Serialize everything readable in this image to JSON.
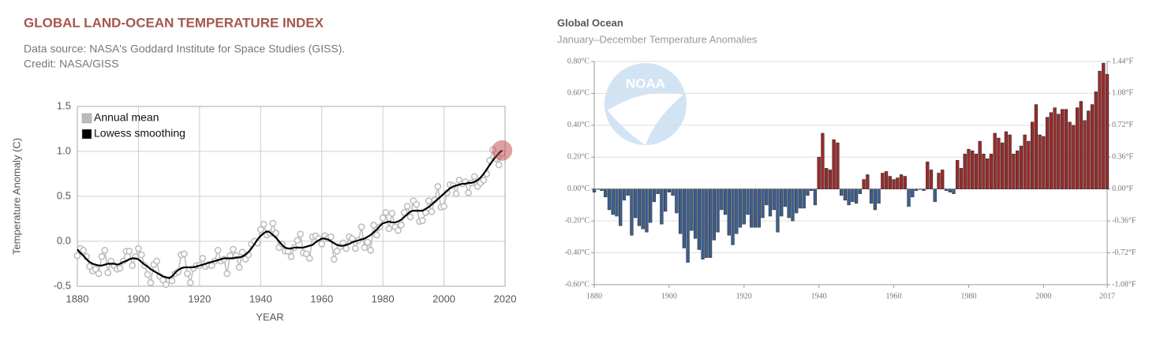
{
  "chart_data": [
    {
      "type": "line",
      "title": "GLOBAL LAND-OCEAN TEMPERATURE INDEX",
      "subtitle": [
        "Data source: NASA's Goddard Institute for Space Studies (GISS).",
        "Credit: NASA/GISS"
      ],
      "x_label": "YEAR",
      "y_label": "Temperature Anomaly (C)",
      "x": [
        1880,
        1881,
        1882,
        1883,
        1884,
        1885,
        1886,
        1887,
        1888,
        1889,
        1890,
        1891,
        1892,
        1893,
        1894,
        1895,
        1896,
        1897,
        1898,
        1899,
        1900,
        1901,
        1902,
        1903,
        1904,
        1905,
        1906,
        1907,
        1908,
        1909,
        1910,
        1911,
        1912,
        1913,
        1914,
        1915,
        1916,
        1917,
        1918,
        1919,
        1920,
        1921,
        1922,
        1923,
        1924,
        1925,
        1926,
        1927,
        1928,
        1929,
        1930,
        1931,
        1932,
        1933,
        1934,
        1935,
        1936,
        1937,
        1938,
        1939,
        1940,
        1941,
        1942,
        1943,
        1944,
        1945,
        1946,
        1947,
        1948,
        1949,
        1950,
        1951,
        1952,
        1953,
        1954,
        1955,
        1956,
        1957,
        1958,
        1959,
        1960,
        1961,
        1962,
        1963,
        1964,
        1965,
        1966,
        1967,
        1968,
        1969,
        1970,
        1971,
        1972,
        1973,
        1974,
        1975,
        1976,
        1977,
        1978,
        1979,
        1980,
        1981,
        1982,
        1983,
        1984,
        1985,
        1986,
        1987,
        1988,
        1989,
        1990,
        1991,
        1992,
        1993,
        1994,
        1995,
        1996,
        1997,
        1998,
        1999,
        2000,
        2001,
        2002,
        2003,
        2004,
        2005,
        2006,
        2007,
        2008,
        2009,
        2010,
        2011,
        2012,
        2013,
        2014,
        2015,
        2016,
        2017,
        2018,
        2019
      ],
      "series": [
        {
          "name": "Annual mean",
          "color": "#bbbbbb",
          "markers": true,
          "values": [
            -0.16,
            -0.08,
            -0.1,
            -0.17,
            -0.28,
            -0.33,
            -0.31,
            -0.36,
            -0.17,
            -0.1,
            -0.35,
            -0.22,
            -0.27,
            -0.31,
            -0.3,
            -0.22,
            -0.11,
            -0.11,
            -0.27,
            -0.17,
            -0.08,
            -0.15,
            -0.27,
            -0.37,
            -0.46,
            -0.26,
            -0.22,
            -0.39,
            -0.43,
            -0.48,
            -0.43,
            -0.44,
            -0.36,
            -0.34,
            -0.15,
            -0.14,
            -0.36,
            -0.46,
            -0.3,
            -0.27,
            -0.27,
            -0.19,
            -0.28,
            -0.26,
            -0.27,
            -0.22,
            -0.1,
            -0.22,
            -0.2,
            -0.36,
            -0.16,
            -0.09,
            -0.16,
            -0.29,
            -0.12,
            -0.2,
            -0.15,
            -0.03,
            0.0,
            -0.02,
            0.13,
            0.19,
            0.07,
            0.09,
            0.2,
            0.09,
            -0.07,
            -0.03,
            -0.11,
            -0.11,
            -0.17,
            -0.07,
            0.01,
            0.08,
            -0.13,
            -0.14,
            -0.19,
            0.05,
            0.06,
            0.03,
            -0.03,
            0.06,
            0.03,
            0.05,
            -0.2,
            -0.11,
            -0.06,
            -0.02,
            -0.08,
            0.05,
            0.03,
            -0.08,
            0.01,
            0.16,
            -0.07,
            -0.01,
            -0.1,
            0.18,
            0.07,
            0.16,
            0.26,
            0.32,
            0.14,
            0.31,
            0.16,
            0.12,
            0.18,
            0.32,
            0.39,
            0.27,
            0.45,
            0.41,
            0.22,
            0.23,
            0.32,
            0.45,
            0.33,
            0.46,
            0.61,
            0.38,
            0.39,
            0.54,
            0.63,
            0.62,
            0.53,
            0.68,
            0.64,
            0.66,
            0.54,
            0.65,
            0.72,
            0.61,
            0.65,
            0.68,
            0.75,
            0.9,
            1.02,
            0.92,
            0.85,
            0.98
          ]
        },
        {
          "name": "Lowess smoothing",
          "color": "#000000",
          "markers": false,
          "values": [
            -0.09,
            -0.13,
            -0.16,
            -0.2,
            -0.23,
            -0.25,
            -0.26,
            -0.27,
            -0.27,
            -0.26,
            -0.25,
            -0.25,
            -0.25,
            -0.26,
            -0.25,
            -0.23,
            -0.22,
            -0.2,
            -0.19,
            -0.19,
            -0.2,
            -0.23,
            -0.26,
            -0.28,
            -0.31,
            -0.33,
            -0.35,
            -0.37,
            -0.39,
            -0.4,
            -0.41,
            -0.39,
            -0.35,
            -0.32,
            -0.3,
            -0.29,
            -0.29,
            -0.29,
            -0.29,
            -0.28,
            -0.27,
            -0.26,
            -0.25,
            -0.24,
            -0.23,
            -0.22,
            -0.21,
            -0.2,
            -0.19,
            -0.19,
            -0.19,
            -0.19,
            -0.18,
            -0.18,
            -0.17,
            -0.15,
            -0.12,
            -0.08,
            -0.03,
            0.02,
            0.06,
            0.09,
            0.11,
            0.1,
            0.07,
            0.04,
            0.0,
            -0.04,
            -0.07,
            -0.08,
            -0.08,
            -0.07,
            -0.07,
            -0.07,
            -0.07,
            -0.06,
            -0.05,
            -0.04,
            -0.01,
            0.01,
            0.03,
            0.03,
            0.02,
            0.0,
            -0.02,
            -0.04,
            -0.05,
            -0.05,
            -0.04,
            -0.03,
            -0.01,
            0.0,
            0.01,
            0.02,
            0.03,
            0.05,
            0.07,
            0.1,
            0.13,
            0.17,
            0.2,
            0.21,
            0.22,
            0.21,
            0.21,
            0.22,
            0.24,
            0.27,
            0.3,
            0.33,
            0.34,
            0.34,
            0.34,
            0.34,
            0.36,
            0.38,
            0.41,
            0.44,
            0.47,
            0.5,
            0.53,
            0.56,
            0.59,
            0.61,
            0.62,
            0.63,
            0.64,
            0.64,
            0.65,
            0.65,
            0.66,
            0.68,
            0.71,
            0.75,
            0.8,
            0.85,
            0.9,
            0.94,
            0.98,
            1.01
          ]
        }
      ],
      "xlim": [
        1880,
        2020
      ],
      "xticks": [
        1880,
        1900,
        1920,
        1940,
        1960,
        1980,
        2000,
        2020
      ],
      "ylim": [
        -0.5,
        1.5
      ],
      "yticks": [
        -0.5,
        {
          "value": 0,
          "label": "0.0"
        },
        0.5,
        {
          "value": 1,
          "label": "1.0"
        },
        1.5
      ],
      "grid": true,
      "legend": "upper left"
    },
    {
      "type": "bar",
      "title": "Global Ocean",
      "subtitle": "January–December Temperature Anomalies",
      "logo": "NOAA",
      "positive_color": "#9b2a2a",
      "negative_color": "#3d5f90",
      "x": [
        1880,
        1881,
        1882,
        1883,
        1884,
        1885,
        1886,
        1887,
        1888,
        1889,
        1890,
        1891,
        1892,
        1893,
        1894,
        1895,
        1896,
        1897,
        1898,
        1899,
        1900,
        1901,
        1902,
        1903,
        1904,
        1905,
        1906,
        1907,
        1908,
        1909,
        1910,
        1911,
        1912,
        1913,
        1914,
        1915,
        1916,
        1917,
        1918,
        1919,
        1920,
        1921,
        1922,
        1923,
        1924,
        1925,
        1926,
        1927,
        1928,
        1929,
        1930,
        1931,
        1932,
        1933,
        1934,
        1935,
        1936,
        1937,
        1938,
        1939,
        1940,
        1941,
        1942,
        1943,
        1944,
        1945,
        1946,
        1947,
        1948,
        1949,
        1950,
        1951,
        1952,
        1953,
        1954,
        1955,
        1956,
        1957,
        1958,
        1959,
        1960,
        1961,
        1962,
        1963,
        1964,
        1965,
        1966,
        1967,
        1968,
        1969,
        1970,
        1971,
        1972,
        1973,
        1974,
        1975,
        1976,
        1977,
        1978,
        1979,
        1980,
        1981,
        1982,
        1983,
        1984,
        1985,
        1986,
        1987,
        1988,
        1989,
        1990,
        1991,
        1992,
        1993,
        1994,
        1995,
        1996,
        1997,
        1998,
        1999,
        2000,
        2001,
        2002,
        2003,
        2004,
        2005,
        2006,
        2007,
        2008,
        2009,
        2010,
        2011,
        2012,
        2013,
        2014,
        2015,
        2016,
        2017
      ],
      "values": [
        -0.02,
        0.0,
        -0.01,
        -0.05,
        -0.13,
        -0.16,
        -0.17,
        -0.23,
        -0.07,
        -0.04,
        -0.29,
        -0.18,
        -0.23,
        -0.25,
        -0.27,
        -0.21,
        -0.08,
        -0.03,
        -0.22,
        -0.14,
        -0.02,
        -0.04,
        -0.15,
        -0.28,
        -0.37,
        -0.46,
        -0.26,
        -0.31,
        -0.38,
        -0.44,
        -0.43,
        -0.43,
        -0.32,
        -0.27,
        -0.13,
        -0.16,
        -0.29,
        -0.35,
        -0.28,
        -0.24,
        -0.22,
        -0.16,
        -0.24,
        -0.24,
        -0.24,
        -0.18,
        -0.1,
        -0.17,
        -0.13,
        -0.27,
        -0.17,
        -0.11,
        -0.18,
        -0.2,
        -0.15,
        -0.12,
        -0.12,
        -0.04,
        -0.01,
        -0.1,
        0.2,
        0.35,
        0.13,
        0.12,
        0.31,
        0.29,
        -0.04,
        -0.07,
        -0.1,
        -0.08,
        -0.09,
        -0.03,
        0.06,
        0.09,
        -0.09,
        -0.13,
        -0.09,
        0.1,
        0.11,
        0.08,
        0.06,
        0.07,
        0.09,
        0.08,
        -0.11,
        -0.05,
        -0.01,
        0.0,
        -0.01,
        0.17,
        0.12,
        -0.08,
        0.1,
        0.12,
        -0.01,
        -0.02,
        -0.03,
        0.18,
        0.13,
        0.22,
        0.25,
        0.24,
        0.22,
        0.3,
        0.22,
        0.19,
        0.22,
        0.35,
        0.32,
        0.29,
        0.36,
        0.34,
        0.22,
        0.24,
        0.27,
        0.34,
        0.3,
        0.42,
        0.53,
        0.34,
        0.33,
        0.45,
        0.48,
        0.51,
        0.47,
        0.5,
        0.5,
        0.42,
        0.4,
        0.51,
        0.55,
        0.43,
        0.49,
        0.53,
        0.61,
        0.74,
        0.79,
        0.72
      ],
      "xlim": [
        1880,
        2017
      ],
      "xticks": [
        1880,
        1900,
        1920,
        1940,
        1960,
        1980,
        2000,
        2017
      ],
      "ylim": [
        -0.6,
        0.8
      ],
      "yticks": [
        {
          "value": -0.6,
          "label": "-0.60°C"
        },
        {
          "value": -0.4,
          "label": "-0.40°C"
        },
        {
          "value": -0.2,
          "label": "-0.20°C"
        },
        {
          "value": 0,
          "label": "0.00°C"
        },
        {
          "value": 0.2,
          "label": "0.20°C"
        },
        {
          "value": 0.4,
          "label": "0.40°C"
        },
        {
          "value": 0.6,
          "label": "0.60°C"
        },
        {
          "value": 0.8,
          "label": "0.80°C"
        }
      ],
      "y2lim": [
        -1.08,
        1.44
      ],
      "y2ticks": [
        {
          "value": -1.08,
          "label": "-1.08°F"
        },
        {
          "value": -0.72,
          "label": "-0.72°F"
        },
        {
          "value": -0.36,
          "label": "-0.36°F"
        },
        {
          "value": 0,
          "label": "0.00°F"
        },
        {
          "value": 0.36,
          "label": "0.36°F"
        },
        {
          "value": 0.72,
          "label": "0.72°F"
        },
        {
          "value": 1.08,
          "label": "1.08°F"
        },
        {
          "value": 1.44,
          "label": "1.44°F"
        }
      ],
      "grid": true
    }
  ]
}
